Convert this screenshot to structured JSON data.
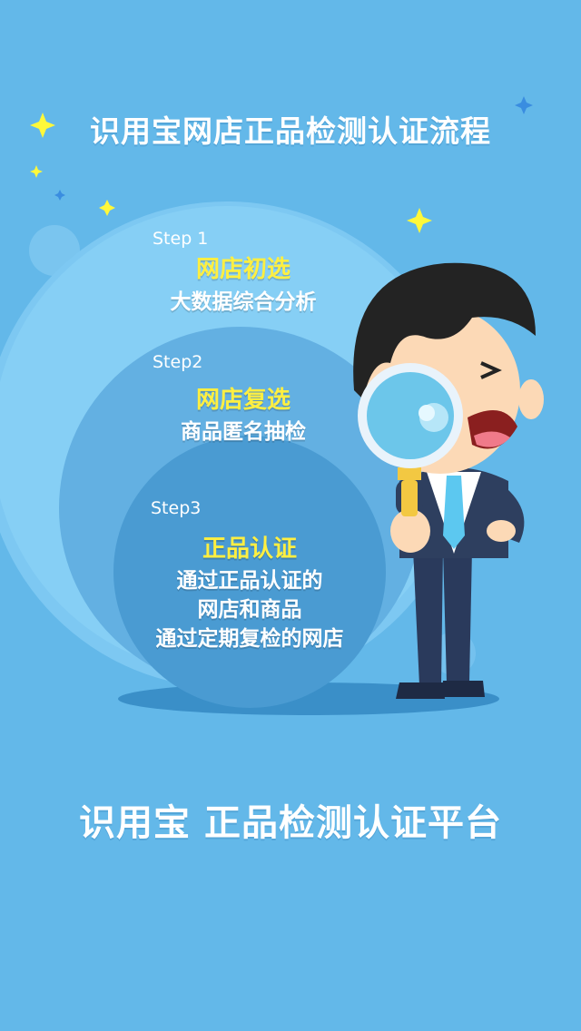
{
  "title": "识用宝网店正品检测认证流程",
  "steps": [
    {
      "label": "Step 1",
      "heading": "网店初选",
      "lines": [
        "大数据综合分析"
      ]
    },
    {
      "label": "Step2",
      "heading": "网店复选",
      "lines": [
        "商品匿名抽检"
      ]
    },
    {
      "label": "Step3",
      "heading": "正品认证",
      "lines": [
        "通过正品认证的",
        "网店和商品",
        "通过定期复检的网店"
      ]
    }
  ],
  "bottom_title": "识用宝  正品检测认证平台",
  "colors": {
    "background": "#63b8e9",
    "heading_yellow": "#ffef41",
    "star_yellow": "#fff83a",
    "star_blue": "#3a8de0"
  },
  "icons": [
    "star-icon",
    "magnifier-icon",
    "businessman-illustration"
  ]
}
